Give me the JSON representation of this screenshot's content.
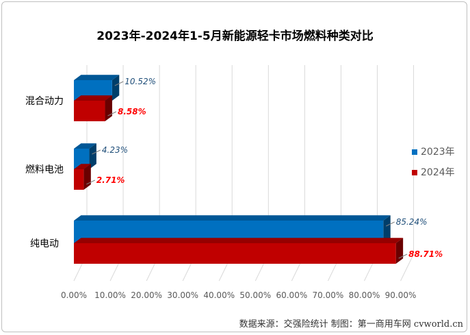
{
  "chart_data": {
    "type": "bar",
    "orientation": "horizontal",
    "title": "2023年-2024年1-5月新能源轻卡市场燃料种类对比",
    "categories": [
      "混合动力",
      "燃料电池",
      "纯电动"
    ],
    "series": [
      {
        "name": "2023年",
        "values": [
          10.52,
          4.23,
          85.24
        ],
        "labels": [
          "10.52%",
          "4.23%",
          "85.24%"
        ],
        "color": "#0070c0"
      },
      {
        "name": "2024年",
        "values": [
          8.58,
          2.71,
          88.71
        ],
        "labels": [
          "8.58%",
          "2.71%",
          "88.71%"
        ],
        "color": "#c00000"
      }
    ],
    "xlim": [
      0,
      90
    ],
    "xticks": [
      "0.00%",
      "10.00%",
      "20.00%",
      "30.00%",
      "40.00%",
      "50.00%",
      "60.00%",
      "70.00%",
      "80.00%",
      "90.00%"
    ],
    "grid": true,
    "legend_position": "right"
  },
  "source_note": "数据来源：交强险统计 制图：第一商用车网 cvworld.cn"
}
